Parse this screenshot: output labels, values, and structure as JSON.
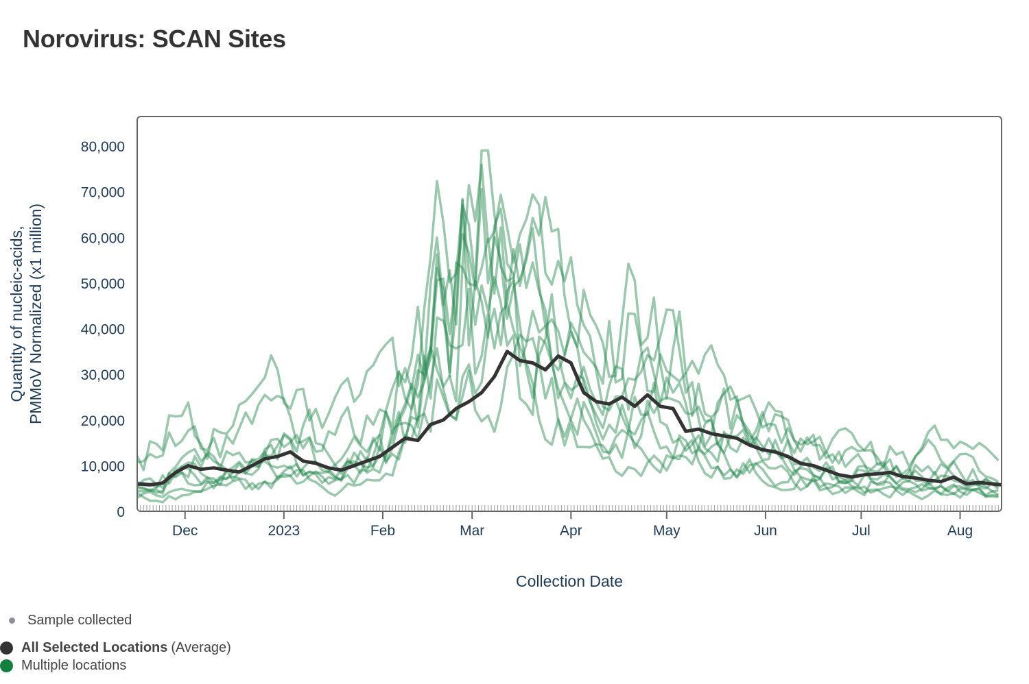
{
  "title": "Norovirus: SCAN Sites",
  "chart_data": {
    "type": "line",
    "title": "Norovirus: SCAN Sites",
    "xlabel": "Collection Date",
    "ylabel_lines": [
      "Quantity of nucleic-acids,",
      "PMMoV Normalized (x1 million)"
    ],
    "x_range": [
      "2022-11-16",
      "2023-08-14"
    ],
    "ylim": [
      0,
      80000
    ],
    "y_ticks": [
      {
        "value": 0,
        "label": "0"
      },
      {
        "value": 10000,
        "label": "10,000"
      },
      {
        "value": 20000,
        "label": "20,000"
      },
      {
        "value": 30000,
        "label": "30,000"
      },
      {
        "value": 40000,
        "label": "40,000"
      },
      {
        "value": 50000,
        "label": "50,000"
      },
      {
        "value": 60000,
        "label": "60,000"
      },
      {
        "value": 70000,
        "label": "70,000"
      },
      {
        "value": 80000,
        "label": "80,000"
      }
    ],
    "x_ticks": [
      {
        "date": "2022-12-01",
        "label": "Dec"
      },
      {
        "date": "2023-01-01",
        "label": "2023"
      },
      {
        "date": "2023-02-01",
        "label": "Feb"
      },
      {
        "date": "2023-03-01",
        "label": "Mar"
      },
      {
        "date": "2023-04-01",
        "label": "Apr"
      },
      {
        "date": "2023-05-01",
        "label": "May"
      },
      {
        "date": "2023-06-01",
        "label": "Jun"
      },
      {
        "date": "2023-07-01",
        "label": "Jul"
      },
      {
        "date": "2023-08-01",
        "label": "Aug"
      }
    ],
    "grid": false,
    "legend_position": "bottom-left",
    "series_average": {
      "name": "All Selected Locations (Average)",
      "color": "#333333",
      "dates": [
        "2022-11-16",
        "2022-11-20",
        "2022-11-24",
        "2022-11-28",
        "2022-12-02",
        "2022-12-06",
        "2022-12-10",
        "2022-12-14",
        "2022-12-18",
        "2022-12-22",
        "2022-12-26",
        "2022-12-30",
        "2023-01-03",
        "2023-01-07",
        "2023-01-11",
        "2023-01-15",
        "2023-01-19",
        "2023-01-23",
        "2023-01-27",
        "2023-01-31",
        "2023-02-04",
        "2023-02-08",
        "2023-02-12",
        "2023-02-16",
        "2023-02-20",
        "2023-02-24",
        "2023-02-28",
        "2023-03-04",
        "2023-03-08",
        "2023-03-12",
        "2023-03-16",
        "2023-03-20",
        "2023-03-24",
        "2023-03-28",
        "2023-04-01",
        "2023-04-05",
        "2023-04-09",
        "2023-04-13",
        "2023-04-17",
        "2023-04-21",
        "2023-04-25",
        "2023-04-29",
        "2023-05-03",
        "2023-05-07",
        "2023-05-11",
        "2023-05-15",
        "2023-05-19",
        "2023-05-23",
        "2023-05-27",
        "2023-05-31",
        "2023-06-04",
        "2023-06-08",
        "2023-06-12",
        "2023-06-16",
        "2023-06-20",
        "2023-06-24",
        "2023-06-28",
        "2023-07-02",
        "2023-07-06",
        "2023-07-10",
        "2023-07-14",
        "2023-07-18",
        "2023-07-22",
        "2023-07-26",
        "2023-07-30",
        "2023-08-03",
        "2023-08-07",
        "2023-08-11",
        "2023-08-14"
      ],
      "values": [
        6000,
        5800,
        6200,
        8500,
        10000,
        9200,
        9500,
        9000,
        8600,
        10000,
        11500,
        12000,
        13000,
        11000,
        10500,
        9500,
        9000,
        10000,
        11000,
        12000,
        14000,
        16000,
        15500,
        19000,
        20000,
        22500,
        24000,
        26000,
        29500,
        35000,
        33000,
        32500,
        31000,
        34000,
        32500,
        26000,
        24000,
        23500,
        25000,
        23000,
        25500,
        23000,
        22500,
        17500,
        18000,
        17000,
        16500,
        16000,
        14500,
        13500,
        13000,
        12000,
        10500,
        10000,
        9000,
        8000,
        7500,
        8000,
        8200,
        8500,
        7600,
        7300,
        6800,
        6500,
        7500,
        6000,
        6300,
        6000,
        5800
      ]
    },
    "series_sites": {
      "name": "Multiple locations",
      "color": "#1e8449",
      "count": 9,
      "envelope_dates": [
        "2022-11-16",
        "2022-12-01",
        "2022-12-15",
        "2023-01-01",
        "2023-01-15",
        "2023-02-01",
        "2023-02-15",
        "2023-03-01",
        "2023-03-15",
        "2023-04-01",
        "2023-04-15",
        "2023-05-01",
        "2023-05-15",
        "2023-06-01",
        "2023-06-15",
        "2023-07-01",
        "2023-07-15",
        "2023-08-01",
        "2023-08-14"
      ],
      "site_scales": [
        1.25,
        0.85,
        1.55,
        0.65,
        1.0,
        1.9,
        0.55,
        1.1,
        0.75
      ],
      "peak_values": [
        79000,
        70000,
        68000,
        66000,
        64000,
        47000,
        45000,
        33000,
        29000
      ]
    },
    "legend": [
      {
        "label": "Sample collected",
        "color": "#8a9099"
      },
      {
        "label_bold": "All Selected Locations",
        "label_rest": "(Average)",
        "color": "#333333"
      },
      {
        "label": "Multiple locations",
        "color": "#13803f"
      }
    ]
  }
}
